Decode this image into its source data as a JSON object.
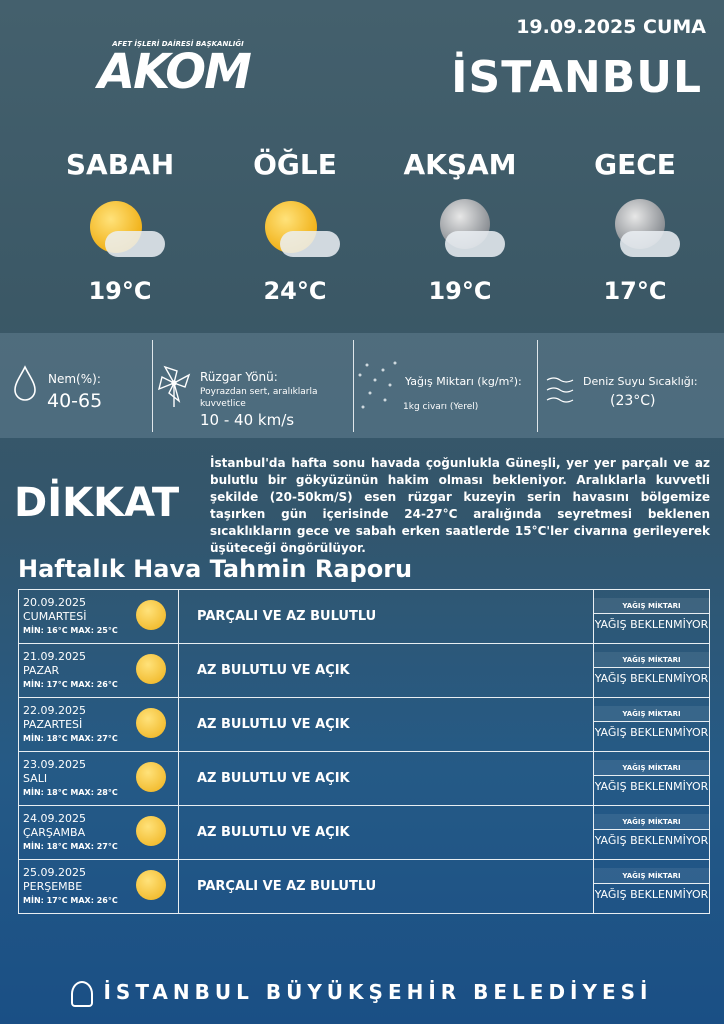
{
  "header": {
    "date": "19.09.2025 CUMA",
    "city": "İSTANBUL",
    "logo_sub": "AFET İŞLERİ DAİRESİ BAŞKANLIĞI",
    "logo_main": "AKOM"
  },
  "periods": [
    {
      "name": "SABAH",
      "temp": "19°C",
      "icon": "sun-cloud"
    },
    {
      "name": "ÖĞLE",
      "temp": "24°C",
      "icon": "sun-cloud"
    },
    {
      "name": "AKŞAM",
      "temp": "19°C",
      "icon": "moon-cloud"
    },
    {
      "name": "GECE",
      "temp": "17°C",
      "icon": "moon-cloud"
    }
  ],
  "stats": {
    "humidity_label": "Nem(%):",
    "humidity_value": "40-65",
    "wind_label": "Rüzgar Yönü:",
    "wind_desc": "Poyrazdan sert, aralıklarla kuvvetlice",
    "wind_value": "10 - 40 km/s",
    "rain_label": "Yağış Miktarı (kg/m²):",
    "rain_value": "1kg civarı (Yerel)",
    "sea_label": "Deniz Suyu Sıcaklığı:",
    "sea_value": "(23°C)"
  },
  "warning": {
    "title": "DİKKAT",
    "text": "İstanbul'da hafta sonu havada çoğunlukla Güneşli, yer yer parçalı ve az bulutlu bir gökyüzünün hakim olması bekleniyor. Aralıklarla kuvvetli şekilde (20-50km/S) esen rüzgar kuzeyin serin havasını bölgemize taşırken gün içerisinde 24-27°C aralığında seyretmesi beklenen sıcaklıkların gece ve sabah erken saatlerde 15°C'ler civarına gerileyerek üşüteceği öngörülüyor."
  },
  "weekly": {
    "title": "Haftalık Hava Tahmin Raporu",
    "rain_header": "YAĞIŞ MİKTARI",
    "days": [
      {
        "date": "20.09.2025",
        "day": "CUMARTESİ",
        "minmax": "MİN: 16°C MAX: 25°C",
        "desc": "PARÇALI VE AZ BULUTLU",
        "rain": "YAĞIŞ BEKLENMİYOR"
      },
      {
        "date": "21.09.2025",
        "day": "PAZAR",
        "minmax": "MİN: 17°C MAX: 26°C",
        "desc": "AZ BULUTLU VE AÇIK",
        "rain": "YAĞIŞ BEKLENMİYOR"
      },
      {
        "date": "22.09.2025",
        "day": "PAZARTESİ",
        "minmax": "MİN: 18°C MAX: 27°C",
        "desc": "AZ BULUTLU VE AÇIK",
        "rain": "YAĞIŞ BEKLENMİYOR"
      },
      {
        "date": "23.09.2025",
        "day": "SALI",
        "minmax": "MİN: 18°C MAX: 28°C",
        "desc": "AZ BULUTLU VE AÇIK",
        "rain": "YAĞIŞ BEKLENMİYOR"
      },
      {
        "date": "24.09.2025",
        "day": "ÇARŞAMBA",
        "minmax": "MİN: 18°C MAX: 27°C",
        "desc": "AZ BULUTLU VE AÇIK",
        "rain": "YAĞIŞ BEKLENMİYOR"
      },
      {
        "date": "25.09.2025",
        "day": "PERŞEMBE",
        "minmax": "MİN: 17°C MAX: 26°C",
        "desc": "PARÇALI VE AZ BULUTLU",
        "rain": "YAĞIŞ BEKLENMİYOR"
      }
    ]
  },
  "footer": {
    "text": "İSTANBUL BÜYÜKŞEHİR BELEDİYESİ"
  },
  "colors": {
    "logo_red": "#e01f26",
    "background_top": "#44606d",
    "background_bottom": "#1a4f85"
  }
}
